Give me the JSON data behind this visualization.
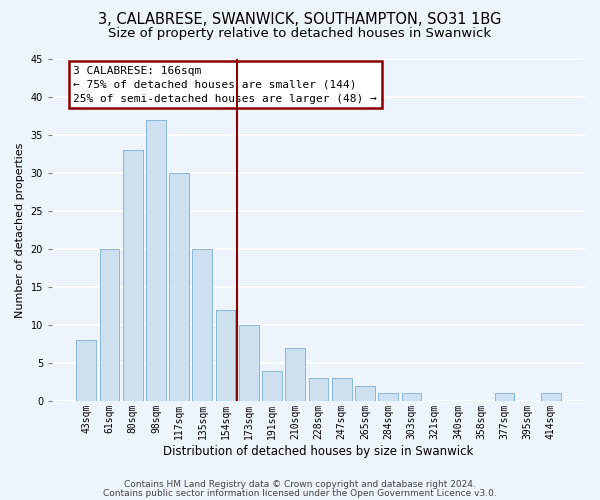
{
  "title": "3, CALABRESE, SWANWICK, SOUTHAMPTON, SO31 1BG",
  "subtitle": "Size of property relative to detached houses in Swanwick",
  "xlabel": "Distribution of detached houses by size in Swanwick",
  "ylabel": "Number of detached properties",
  "bar_labels": [
    "43sqm",
    "61sqm",
    "80sqm",
    "98sqm",
    "117sqm",
    "135sqm",
    "154sqm",
    "173sqm",
    "191sqm",
    "210sqm",
    "228sqm",
    "247sqm",
    "265sqm",
    "284sqm",
    "303sqm",
    "321sqm",
    "340sqm",
    "358sqm",
    "377sqm",
    "395sqm",
    "414sqm"
  ],
  "bar_values": [
    8,
    20,
    33,
    37,
    30,
    20,
    12,
    10,
    4,
    7,
    3,
    3,
    2,
    1,
    1,
    0,
    0,
    0,
    1,
    0,
    1
  ],
  "bar_color": "#cde0f0",
  "bar_edge_color": "#8ab8d8",
  "vline_index": 7,
  "vline_color": "#880000",
  "ylim": [
    0,
    45
  ],
  "yticks": [
    0,
    5,
    10,
    15,
    20,
    25,
    30,
    35,
    40,
    45
  ],
  "annotation_title": "3 CALABRESE: 166sqm",
  "annotation_line1": "← 75% of detached houses are smaller (144)",
  "annotation_line2": "25% of semi-detached houses are larger (48) →",
  "footer1": "Contains HM Land Registry data © Crown copyright and database right 2024.",
  "footer2": "Contains public sector information licensed under the Open Government Licence v3.0.",
  "bg_color": "#edf4fb",
  "plot_bg_color": "#edf4fb",
  "grid_color": "#ffffff",
  "title_fontsize": 10.5,
  "subtitle_fontsize": 9.5,
  "xlabel_fontsize": 8.5,
  "ylabel_fontsize": 8,
  "tick_fontsize": 7,
  "annotation_fontsize": 8,
  "footer_fontsize": 6.5
}
